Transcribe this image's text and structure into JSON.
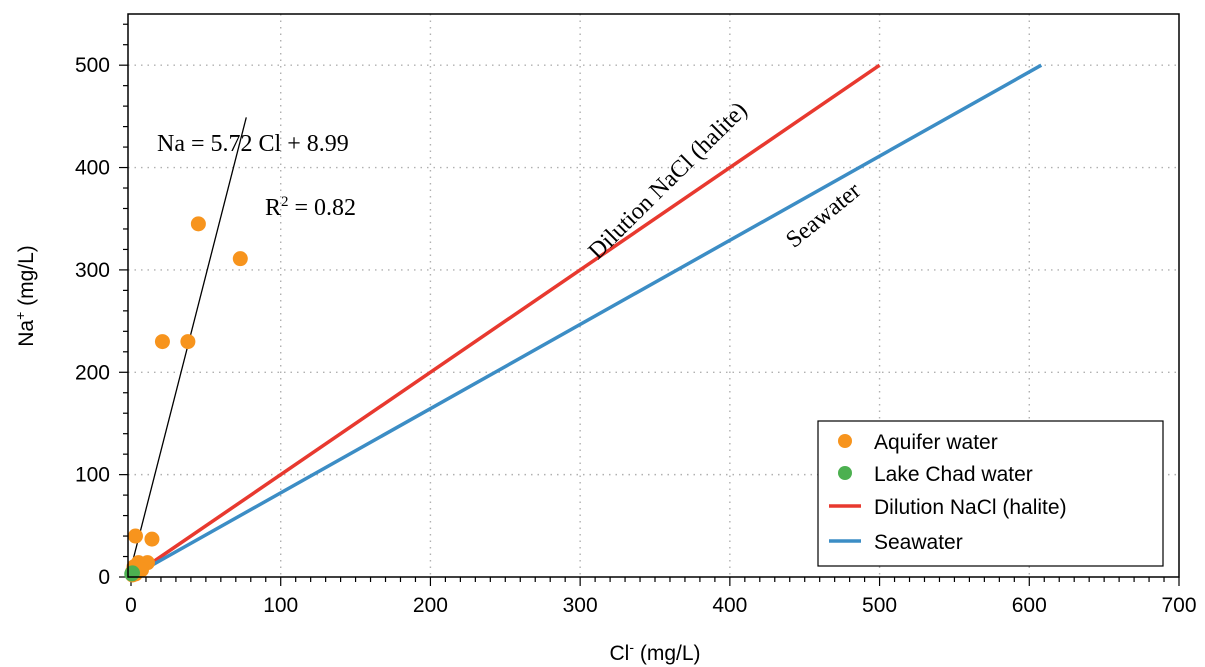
{
  "chart_data": {
    "type": "scatter",
    "xlabel": "Cl",
    "xlabel_sup": "-",
    "xlabel_unit": " (mg/L)",
    "ylabel": "Na",
    "ylabel_sup": "+",
    "ylabel_unit": " (mg/L)",
    "xlim": [
      0,
      700
    ],
    "ylim": [
      0,
      550
    ],
    "x_ticks": [
      0,
      100,
      200,
      300,
      400,
      500,
      600,
      700
    ],
    "y_ticks": [
      0,
      100,
      200,
      300,
      400,
      500
    ],
    "grid": true,
    "legend_position": "bottom-right",
    "series": [
      {
        "name": "Aquifer water",
        "kind": "points",
        "color": "#f7941d",
        "points": [
          [
            45,
            345
          ],
          [
            73,
            311
          ],
          [
            21,
            230
          ],
          [
            38,
            230
          ],
          [
            3,
            40
          ],
          [
            14,
            37
          ],
          [
            5,
            14
          ],
          [
            11,
            14
          ],
          [
            2,
            10
          ],
          [
            7,
            7
          ],
          [
            1,
            5
          ],
          [
            3,
            3
          ],
          [
            1,
            2
          ]
        ]
      },
      {
        "name": "Lake Chad water",
        "kind": "points",
        "color": "#4cb050",
        "points": [
          [
            0.5,
            3
          ],
          [
            1,
            4
          ]
        ]
      },
      {
        "name": "Dilution NaCl (halite)",
        "kind": "line",
        "color": "#e8392f",
        "points": [
          [
            0,
            0
          ],
          [
            500,
            500
          ]
        ]
      },
      {
        "name": "Seawater",
        "kind": "line",
        "color": "#3c8dc5",
        "points": [
          [
            0,
            0
          ],
          [
            608,
            500
          ]
        ]
      }
    ],
    "regression": {
      "color": "#000000",
      "points": [
        [
          0,
          8.99
        ],
        [
          77,
          449
        ]
      ],
      "equation": "Na = 5.72 Cl + 8.99",
      "r2_prefix": "R",
      "r2_sup": "2",
      "r2_suffix": " = 0.82"
    },
    "line_labels": [
      {
        "text": "Dilution NaCl (halite)",
        "series": 2
      },
      {
        "text": "Seawater",
        "series": 3
      }
    ]
  }
}
